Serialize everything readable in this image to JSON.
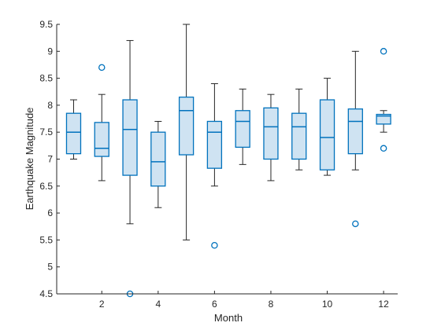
{
  "chart_data": {
    "type": "boxplot",
    "title": "",
    "xlabel": "Month",
    "ylabel": "Earthquake Magnitude",
    "xlim": [
      0.4,
      12.5
    ],
    "ylim": [
      4.5,
      9.5
    ],
    "xticks": [
      2,
      4,
      6,
      8,
      10,
      12
    ],
    "yticks": [
      4.5,
      5,
      5.5,
      6,
      6.5,
      7,
      7.5,
      8,
      8.5,
      9,
      9.5
    ],
    "grid": false,
    "box_color": "#0072BD",
    "box_fill": "#cfe3f2",
    "whisker_color": "#262626",
    "boxes": [
      {
        "month": 1,
        "whisker_low": 7.0,
        "q1": 7.1,
        "median": 7.5,
        "q3": 7.85,
        "whisker_high": 8.1,
        "outliers": []
      },
      {
        "month": 2,
        "whisker_low": 6.6,
        "q1": 7.05,
        "median": 7.2,
        "q3": 7.68,
        "whisker_high": 8.2,
        "outliers": [
          8.7
        ]
      },
      {
        "month": 3,
        "whisker_low": 5.8,
        "q1": 6.7,
        "median": 7.55,
        "q3": 8.1,
        "whisker_high": 9.2,
        "outliers": [
          4.5
        ]
      },
      {
        "month": 4,
        "whisker_low": 6.1,
        "q1": 6.5,
        "median": 6.95,
        "q3": 7.5,
        "whisker_high": 7.7,
        "outliers": []
      },
      {
        "month": 5,
        "whisker_low": 5.5,
        "q1": 7.08,
        "median": 7.9,
        "q3": 8.15,
        "whisker_high": 9.5,
        "outliers": []
      },
      {
        "month": 6,
        "whisker_low": 6.5,
        "q1": 6.83,
        "median": 7.5,
        "q3": 7.7,
        "whisker_high": 8.4,
        "outliers": [
          5.4
        ]
      },
      {
        "month": 7,
        "whisker_low": 6.9,
        "q1": 7.22,
        "median": 7.7,
        "q3": 7.9,
        "whisker_high": 8.3,
        "outliers": []
      },
      {
        "month": 8,
        "whisker_low": 6.6,
        "q1": 7.0,
        "median": 7.6,
        "q3": 7.95,
        "whisker_high": 8.2,
        "outliers": []
      },
      {
        "month": 9,
        "whisker_low": 6.8,
        "q1": 7.0,
        "median": 7.6,
        "q3": 7.85,
        "whisker_high": 8.3,
        "outliers": []
      },
      {
        "month": 10,
        "whisker_low": 6.7,
        "q1": 6.8,
        "median": 7.4,
        "q3": 8.1,
        "whisker_high": 8.5,
        "outliers": []
      },
      {
        "month": 11,
        "whisker_low": 6.8,
        "q1": 7.1,
        "median": 7.7,
        "q3": 7.93,
        "whisker_high": 9.0,
        "outliers": [
          5.8
        ]
      },
      {
        "month": 12,
        "whisker_low": 7.5,
        "q1": 7.65,
        "median": 7.8,
        "q3": 7.83,
        "whisker_high": 7.9,
        "outliers": [
          9.0,
          7.2
        ]
      }
    ]
  }
}
